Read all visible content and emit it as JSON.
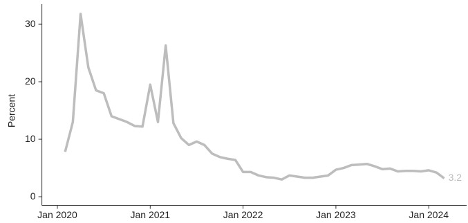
{
  "chart_data": {
    "type": "line",
    "y_label": "Percent",
    "x": [
      "2020-02",
      "2020-03",
      "2020-04",
      "2020-05",
      "2020-06",
      "2020-07",
      "2020-08",
      "2020-09",
      "2020-10",
      "2020-11",
      "2020-12",
      "2021-01",
      "2021-02",
      "2021-03",
      "2021-04",
      "2021-05",
      "2021-06",
      "2021-07",
      "2021-08",
      "2021-09",
      "2021-10",
      "2021-11",
      "2021-12",
      "2022-01",
      "2022-02",
      "2022-03",
      "2022-04",
      "2022-05",
      "2022-06",
      "2022-07",
      "2022-08",
      "2022-09",
      "2022-10",
      "2022-11",
      "2022-12",
      "2023-01",
      "2023-02",
      "2023-03",
      "2023-04",
      "2023-05",
      "2023-06",
      "2023-07",
      "2023-08",
      "2023-09",
      "2023-10",
      "2023-11",
      "2023-12",
      "2024-01",
      "2024-02",
      "2024-03"
    ],
    "series": [
      {
        "name": null,
        "color": "#bdbdbd",
        "values": [
          7.8,
          13,
          31.8,
          22.5,
          18.5,
          18,
          14,
          13.5,
          13,
          12.3,
          12.2,
          19.5,
          13,
          26.3,
          12.8,
          10.2,
          9,
          9.6,
          9,
          7.5,
          6.9,
          6.6,
          6.4,
          4.3,
          4.3,
          3.7,
          3.4,
          3.3,
          3.0,
          3.7,
          3.5,
          3.3,
          3.3,
          3.5,
          3.7,
          4.7,
          5.0,
          5.5,
          5.6,
          5.7,
          5.3,
          4.8,
          4.9,
          4.4,
          4.5,
          4.5,
          4.4,
          4.6,
          4.2,
          3.2
        ]
      }
    ],
    "xlim": [
      "2019-11",
      "2024-05"
    ],
    "xticks": [
      {
        "value": "2020-01",
        "label": "Jan 2020"
      },
      {
        "value": "2021-01",
        "label": "Jan 2021"
      },
      {
        "value": "2022-01",
        "label": "Jan 2022"
      },
      {
        "value": "2023-01",
        "label": "Jan 2023"
      },
      {
        "value": "2024-01",
        "label": "Jan 2024"
      }
    ],
    "ylim": [
      -1.5,
      33.5
    ],
    "yticks": [
      0,
      10,
      20,
      30
    ],
    "end_label": true
  }
}
